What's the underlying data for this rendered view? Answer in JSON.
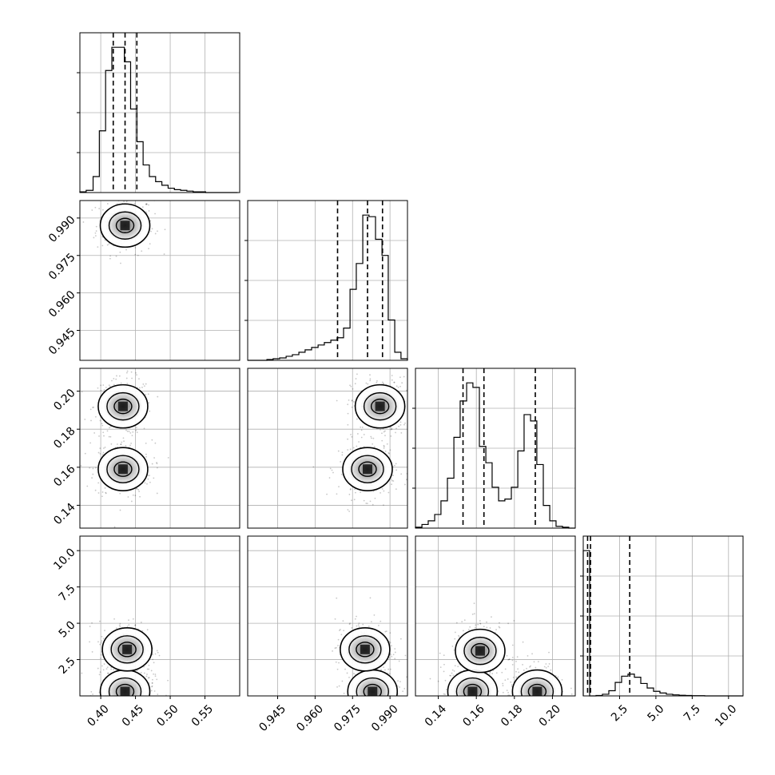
{
  "chart_data": {
    "type": "corner",
    "grid": true,
    "quantile_style": "dashed",
    "parameters": [
      {
        "range": [
          0.37,
          0.6
        ],
        "ticks": [
          0.4,
          0.45,
          0.5,
          0.55
        ],
        "tick_labels": [
          "0.40",
          "0.45",
          "0.50",
          "0.55"
        ],
        "quantiles": [
          0.418,
          0.435,
          0.452
        ]
      },
      {
        "range": [
          0.933,
          0.997
        ],
        "ticks": [
          0.945,
          0.96,
          0.975,
          0.99
        ],
        "tick_labels": [
          "0.945",
          "0.960",
          "0.975",
          "0.990"
        ],
        "quantiles": [
          0.969,
          0.981,
          0.987
        ]
      },
      {
        "range": [
          0.128,
          0.212
        ],
        "ticks": [
          0.14,
          0.16,
          0.18,
          0.2
        ],
        "tick_labels": [
          "0.14",
          "0.16",
          "0.18",
          "0.20"
        ],
        "quantiles": [
          0.153,
          0.164,
          0.191
        ]
      },
      {
        "range": [
          0.0,
          11.0
        ],
        "ticks": [
          2.5,
          5.0,
          7.5,
          10.0
        ],
        "tick_labels": [
          "2.5",
          "5.0",
          "7.5",
          "10.0"
        ],
        "quantiles": [
          0.3,
          0.5,
          3.2
        ]
      }
    ],
    "histograms": [
      {
        "param": 0,
        "bins": [
          0.37,
          0.379,
          0.389,
          0.398,
          0.407,
          0.416,
          0.425,
          0.434,
          0.443,
          0.452,
          0.461,
          0.47,
          0.479,
          0.488,
          0.497,
          0.506,
          0.515,
          0.524,
          0.533,
          0.542,
          0.551,
          0.56,
          0.569,
          0.578,
          0.587,
          0.597
        ],
        "counts": [
          1,
          3,
          22,
          85,
          168,
          200,
          200,
          180,
          115,
          70,
          38,
          22,
          15,
          10,
          6,
          4,
          3,
          2,
          1,
          1,
          0,
          0,
          0,
          0,
          0
        ]
      },
      {
        "param": 1,
        "bins": [
          0.933,
          0.9356,
          0.9381,
          0.9407,
          0.9432,
          0.9458,
          0.9484,
          0.9509,
          0.9535,
          0.956,
          0.9586,
          0.9612,
          0.9637,
          0.9663,
          0.9688,
          0.9714,
          0.974,
          0.9765,
          0.9791,
          0.9816,
          0.9842,
          0.9868,
          0.9893,
          0.9919,
          0.9944,
          0.997
        ],
        "counts": [
          0,
          0,
          0,
          1,
          2,
          3,
          5,
          7,
          10,
          13,
          16,
          19,
          22,
          25,
          28,
          40,
          88,
          120,
          180,
          178,
          150,
          130,
          50,
          10,
          2
        ]
      },
      {
        "param": 2,
        "bins": [
          0.128,
          0.1314,
          0.1347,
          0.1381,
          0.1414,
          0.1448,
          0.1482,
          0.1515,
          0.1549,
          0.1582,
          0.1616,
          0.165,
          0.1683,
          0.1717,
          0.175,
          0.1784,
          0.1818,
          0.1851,
          0.1885,
          0.1918,
          0.1952,
          0.1986,
          0.2019,
          0.2053,
          0.2086,
          0.212
        ],
        "counts": [
          1,
          4,
          8,
          15,
          30,
          55,
          100,
          140,
          160,
          155,
          90,
          72,
          45,
          30,
          32,
          45,
          85,
          125,
          118,
          70,
          25,
          8,
          2,
          1,
          0
        ]
      },
      {
        "param": 3,
        "bins": [
          0.0,
          0.44,
          0.88,
          1.32,
          1.76,
          2.2,
          2.64,
          3.08,
          3.52,
          3.96,
          4.4,
          4.84,
          5.28,
          5.72,
          6.16,
          6.6,
          7.04,
          7.48,
          7.92,
          8.36,
          8.8,
          9.24,
          9.68,
          10.12,
          10.56,
          11.0
        ],
        "counts": [
          700,
          0,
          2,
          8,
          25,
          65,
          95,
          105,
          90,
          60,
          38,
          22,
          14,
          8,
          5,
          3,
          2,
          1,
          1,
          0,
          0,
          0,
          0,
          0,
          0
        ]
      }
    ],
    "joint_panels": [
      {
        "x_param": 0,
        "y_param": 1,
        "modes": [
          {
            "x": 0.435,
            "y": 0.987
          }
        ]
      },
      {
        "x_param": 0,
        "y_param": 2,
        "modes": [
          {
            "x": 0.432,
            "y": 0.192
          },
          {
            "x": 0.432,
            "y": 0.159
          }
        ]
      },
      {
        "x_param": 1,
        "y_param": 2,
        "modes": [
          {
            "x": 0.986,
            "y": 0.192
          },
          {
            "x": 0.981,
            "y": 0.159
          }
        ]
      },
      {
        "x_param": 0,
        "y_param": 3,
        "modes": [
          {
            "x": 0.435,
            "y": 0.3
          },
          {
            "x": 0.438,
            "y": 3.2
          }
        ]
      },
      {
        "x_param": 1,
        "y_param": 3,
        "modes": [
          {
            "x": 0.983,
            "y": 0.3
          },
          {
            "x": 0.98,
            "y": 3.2
          }
        ]
      },
      {
        "x_param": 2,
        "y_param": 3,
        "modes": [
          {
            "x": 0.158,
            "y": 0.3
          },
          {
            "x": 0.192,
            "y": 0.3
          },
          {
            "x": 0.162,
            "y": 3.1
          }
        ]
      }
    ]
  }
}
